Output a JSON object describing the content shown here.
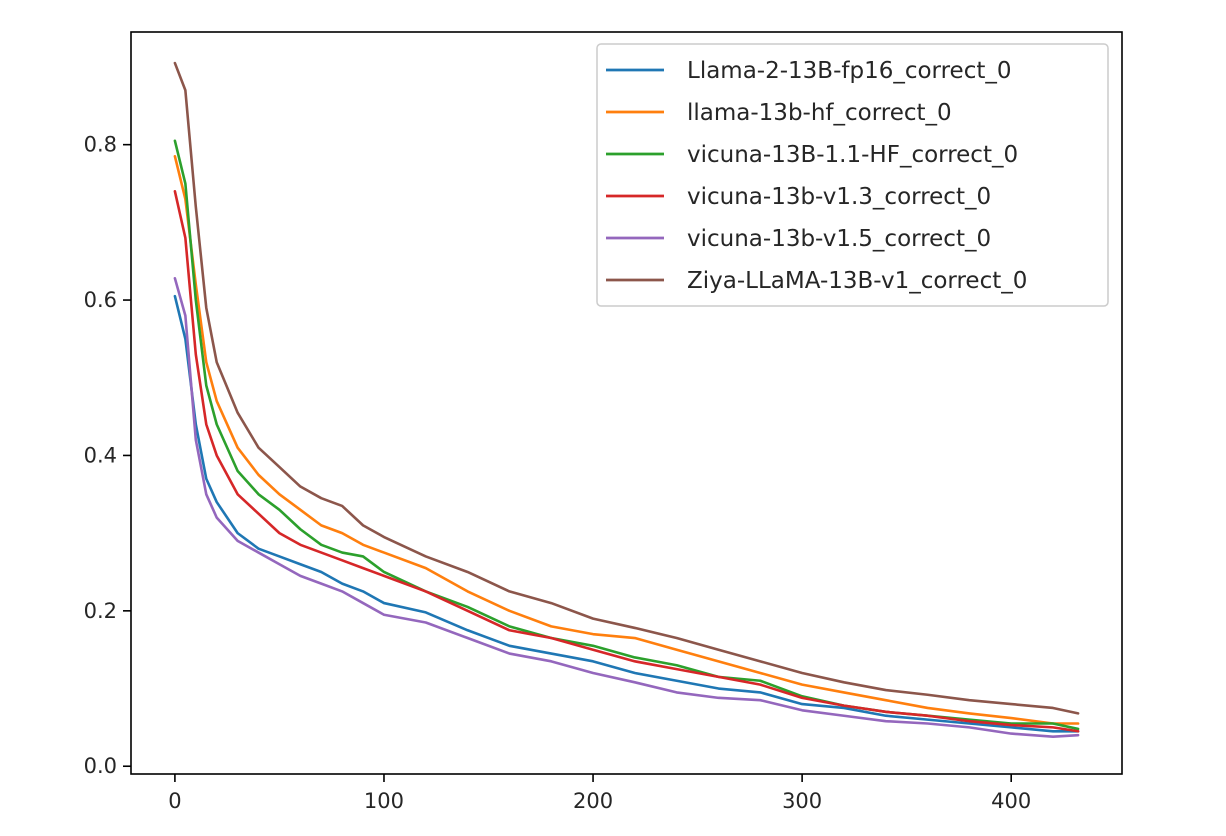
{
  "chart_data": {
    "type": "line",
    "title": "",
    "xlabel": "",
    "ylabel": "",
    "xlim": [
      -21,
      453
    ],
    "ylim": [
      -0.01,
      0.945
    ],
    "x_ticks": [
      0,
      100,
      200,
      300,
      400
    ],
    "x_tick_labels": [
      "0",
      "100",
      "200",
      "300",
      "400"
    ],
    "y_ticks": [
      0.0,
      0.2,
      0.4,
      0.6,
      0.8
    ],
    "y_tick_labels": [
      "0.0",
      "0.2",
      "0.4",
      "0.6",
      "0.8"
    ],
    "grid": false,
    "legend_position": "top-right",
    "x": [
      0,
      5,
      10,
      15,
      20,
      30,
      40,
      50,
      60,
      70,
      80,
      90,
      100,
      120,
      140,
      160,
      180,
      200,
      220,
      240,
      260,
      280,
      300,
      320,
      340,
      360,
      380,
      400,
      420,
      432
    ],
    "series": [
      {
        "name": "Llama-2-13B-fp16_correct_0",
        "color": "#1f77b4",
        "values": [
          0.605,
          0.55,
          0.44,
          0.37,
          0.34,
          0.3,
          0.28,
          0.27,
          0.26,
          0.25,
          0.235,
          0.225,
          0.21,
          0.198,
          0.175,
          0.155,
          0.145,
          0.135,
          0.12,
          0.11,
          0.1,
          0.095,
          0.08,
          0.075,
          0.065,
          0.06,
          0.055,
          0.05,
          0.045,
          0.045
        ]
      },
      {
        "name": "llama-13b-hf_correct_0",
        "color": "#ff7f0e",
        "values": [
          0.785,
          0.73,
          0.62,
          0.52,
          0.47,
          0.41,
          0.375,
          0.35,
          0.33,
          0.31,
          0.3,
          0.285,
          0.275,
          0.255,
          0.225,
          0.2,
          0.18,
          0.17,
          0.165,
          0.15,
          0.135,
          0.12,
          0.105,
          0.095,
          0.085,
          0.075,
          0.068,
          0.062,
          0.055,
          0.055
        ]
      },
      {
        "name": "vicuna-13B-1.1-HF_correct_0",
        "color": "#2ca02c",
        "values": [
          0.805,
          0.75,
          0.6,
          0.49,
          0.44,
          0.38,
          0.35,
          0.33,
          0.305,
          0.285,
          0.275,
          0.27,
          0.25,
          0.225,
          0.205,
          0.18,
          0.165,
          0.155,
          0.14,
          0.13,
          0.115,
          0.11,
          0.09,
          0.078,
          0.07,
          0.065,
          0.06,
          0.055,
          0.055,
          0.048
        ]
      },
      {
        "name": "vicuna-13b-v1.3_correct_0",
        "color": "#d62728",
        "values": [
          0.74,
          0.68,
          0.53,
          0.44,
          0.4,
          0.35,
          0.325,
          0.3,
          0.285,
          0.275,
          0.265,
          0.255,
          0.245,
          0.225,
          0.2,
          0.175,
          0.165,
          0.15,
          0.135,
          0.125,
          0.115,
          0.105,
          0.088,
          0.078,
          0.07,
          0.065,
          0.058,
          0.053,
          0.05,
          0.045
        ]
      },
      {
        "name": "vicuna-13b-v1.5_correct_0",
        "color": "#9467bd",
        "values": [
          0.628,
          0.58,
          0.42,
          0.35,
          0.32,
          0.29,
          0.275,
          0.26,
          0.245,
          0.235,
          0.225,
          0.21,
          0.195,
          0.185,
          0.165,
          0.145,
          0.135,
          0.12,
          0.108,
          0.095,
          0.088,
          0.085,
          0.072,
          0.065,
          0.058,
          0.055,
          0.05,
          0.042,
          0.038,
          0.04
        ]
      },
      {
        "name": "Ziya-LLaMA-13B-v1_correct_0",
        "color": "#8c564b",
        "values": [
          0.905,
          0.87,
          0.72,
          0.59,
          0.52,
          0.455,
          0.41,
          0.385,
          0.36,
          0.345,
          0.335,
          0.31,
          0.295,
          0.27,
          0.25,
          0.225,
          0.21,
          0.19,
          0.178,
          0.165,
          0.15,
          0.135,
          0.12,
          0.108,
          0.098,
          0.092,
          0.085,
          0.08,
          0.075,
          0.068
        ]
      }
    ]
  }
}
